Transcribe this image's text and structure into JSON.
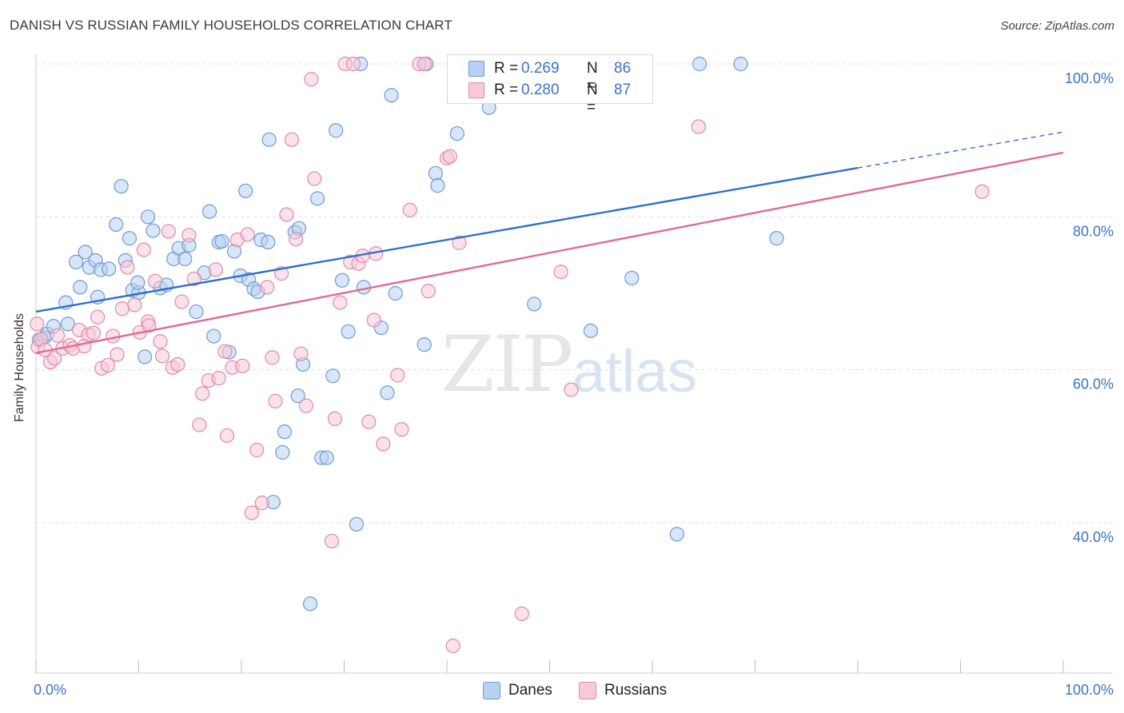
{
  "title": "DANISH VS RUSSIAN FAMILY HOUSEHOLDS CORRELATION CHART",
  "source": "Source: ZipAtlas.com",
  "watermark": {
    "zip": "ZIP",
    "atlas": "atlas"
  },
  "legend": {
    "rows": [
      {
        "r_label": "R =",
        "r_value": "0.269",
        "n_label": "N =",
        "n_value": "86",
        "color": "#a8c8f0",
        "border": "#6f9ad6"
      },
      {
        "r_label": "R =",
        "r_value": "0.280",
        "n_label": "N =",
        "n_value": "87",
        "color": "#f7bfd0",
        "border": "#e08aa6"
      }
    ]
  },
  "bottom_legend": {
    "danes": "Danes",
    "russians": "Russians"
  },
  "chart_data": {
    "type": "scatter",
    "title": "DANISH VS RUSSIAN FAMILY HOUSEHOLDS CORRELATION CHART",
    "xlabel": "",
    "ylabel": "Family Households",
    "xlim": [
      0,
      100
    ],
    "ylim": [
      20,
      102
    ],
    "x_tick_labels": [
      "0.0%",
      "100.0%"
    ],
    "y_ticks": [
      40,
      60,
      80,
      100
    ],
    "y_tick_labels": [
      "40.0%",
      "60.0%",
      "80.0%",
      "100.0%"
    ],
    "grid": true,
    "legend_position": "top-center",
    "series": [
      {
        "name": "Danes",
        "color": "#6f9ad6",
        "fill": "#b7d1f2",
        "line_color": "#2f6fce",
        "trend": {
          "x0": 0,
          "y0": 67.6,
          "x1": 80,
          "y1": 86.4,
          "dash_to_x": 100,
          "dash_to_y": 91.1
        },
        "points": [
          [
            0.3,
            63.9
          ],
          [
            0.8,
            64.2
          ],
          [
            1.1,
            64.7
          ],
          [
            1.7,
            65.7
          ],
          [
            2.9,
            68.8
          ],
          [
            3.9,
            74.1
          ],
          [
            4.3,
            70.8
          ],
          [
            4.8,
            75.4
          ],
          [
            5.2,
            73.4
          ],
          [
            5.8,
            74.3
          ],
          [
            6.3,
            73.1
          ],
          [
            7.1,
            73.2
          ],
          [
            7.8,
            79.0
          ],
          [
            8.3,
            84.0
          ],
          [
            8.7,
            74.3
          ],
          [
            9.1,
            77.2
          ],
          [
            9.4,
            70.4
          ],
          [
            10.0,
            70.1
          ],
          [
            10.6,
            61.7
          ],
          [
            10.9,
            80.0
          ],
          [
            11.4,
            78.2
          ],
          [
            12.1,
            70.7
          ],
          [
            12.7,
            71.1
          ],
          [
            13.4,
            74.5
          ],
          [
            13.9,
            75.9
          ],
          [
            14.5,
            74.5
          ],
          [
            14.9,
            76.3
          ],
          [
            15.6,
            67.6
          ],
          [
            16.4,
            72.7
          ],
          [
            16.9,
            80.7
          ],
          [
            17.3,
            64.4
          ],
          [
            17.8,
            76.7
          ],
          [
            18.1,
            76.8
          ],
          [
            18.8,
            62.3
          ],
          [
            19.3,
            75.5
          ],
          [
            19.9,
            72.3
          ],
          [
            20.4,
            83.4
          ],
          [
            20.7,
            71.8
          ],
          [
            21.2,
            70.6
          ],
          [
            21.6,
            70.2
          ],
          [
            21.9,
            77.0
          ],
          [
            22.6,
            76.7
          ],
          [
            22.7,
            90.1
          ],
          [
            23.1,
            42.7
          ],
          [
            24.2,
            51.9
          ],
          [
            24.0,
            49.2
          ],
          [
            25.2,
            78.0
          ],
          [
            25.5,
            56.6
          ],
          [
            25.6,
            78.5
          ],
          [
            26.0,
            60.7
          ],
          [
            26.7,
            29.4
          ],
          [
            27.4,
            82.4
          ],
          [
            27.8,
            48.5
          ],
          [
            28.3,
            48.5
          ],
          [
            28.9,
            59.2
          ],
          [
            29.2,
            91.3
          ],
          [
            29.8,
            71.7
          ],
          [
            30.4,
            65.0
          ],
          [
            31.2,
            39.8
          ],
          [
            31.6,
            100.0
          ],
          [
            31.9,
            70.8
          ],
          [
            33.6,
            65.5
          ],
          [
            34.2,
            57.0
          ],
          [
            34.6,
            95.9
          ],
          [
            35.0,
            70.0
          ],
          [
            37.8,
            63.3
          ],
          [
            38.0,
            100.0
          ],
          [
            38.9,
            85.7
          ],
          [
            39.1,
            84.1
          ],
          [
            41.0,
            90.9
          ],
          [
            42.1,
            100.0
          ],
          [
            44.1,
            94.3
          ],
          [
            44.8,
            100.0
          ],
          [
            47.3,
            100.0
          ],
          [
            48.5,
            68.6
          ],
          [
            50.3,
            100.0
          ],
          [
            54.0,
            65.1
          ],
          [
            56.4,
            100.0
          ],
          [
            58.0,
            72.0
          ],
          [
            62.4,
            38.5
          ],
          [
            64.6,
            100.0
          ],
          [
            68.6,
            100.0
          ],
          [
            72.1,
            77.2
          ],
          [
            3.1,
            66.0
          ],
          [
            6.0,
            69.5
          ],
          [
            9.9,
            71.4
          ]
        ]
      },
      {
        "name": "Russians",
        "color": "#e08aa6",
        "fill": "#f8c9d8",
        "line_color": "#e06a95",
        "trend": {
          "x0": 0,
          "y0": 62.2,
          "x1": 100,
          "y1": 88.4
        },
        "points": [
          [
            0.2,
            63.0
          ],
          [
            0.5,
            64.0
          ],
          [
            0.9,
            62.6
          ],
          [
            1.4,
            61.0
          ],
          [
            1.8,
            61.5
          ],
          [
            2.6,
            62.8
          ],
          [
            3.3,
            63.2
          ],
          [
            3.6,
            62.8
          ],
          [
            4.2,
            65.2
          ],
          [
            4.7,
            63.1
          ],
          [
            5.1,
            64.6
          ],
          [
            5.6,
            64.8
          ],
          [
            6.0,
            66.9
          ],
          [
            6.4,
            60.2
          ],
          [
            7.0,
            60.6
          ],
          [
            7.5,
            64.4
          ],
          [
            7.9,
            62.0
          ],
          [
            8.4,
            68.0
          ],
          [
            8.9,
            73.4
          ],
          [
            9.6,
            68.5
          ],
          [
            10.1,
            64.9
          ],
          [
            10.5,
            75.7
          ],
          [
            10.9,
            66.3
          ],
          [
            11.6,
            71.6
          ],
          [
            12.1,
            63.7
          ],
          [
            12.3,
            61.8
          ],
          [
            12.9,
            78.1
          ],
          [
            13.3,
            60.3
          ],
          [
            13.8,
            60.7
          ],
          [
            14.2,
            68.9
          ],
          [
            14.9,
            77.6
          ],
          [
            15.4,
            71.9
          ],
          [
            15.9,
            52.8
          ],
          [
            16.2,
            56.9
          ],
          [
            16.8,
            58.6
          ],
          [
            17.5,
            73.1
          ],
          [
            17.8,
            58.9
          ],
          [
            18.4,
            62.4
          ],
          [
            18.6,
            51.4
          ],
          [
            19.1,
            60.3
          ],
          [
            19.6,
            77.0
          ],
          [
            20.1,
            60.5
          ],
          [
            20.6,
            77.7
          ],
          [
            21.0,
            41.3
          ],
          [
            21.5,
            49.5
          ],
          [
            22.0,
            42.6
          ],
          [
            22.5,
            70.8
          ],
          [
            23.0,
            61.6
          ],
          [
            23.3,
            55.9
          ],
          [
            23.9,
            72.6
          ],
          [
            24.4,
            80.3
          ],
          [
            24.9,
            90.1
          ],
          [
            25.3,
            77.1
          ],
          [
            25.8,
            62.1
          ],
          [
            26.3,
            55.3
          ],
          [
            26.8,
            98.0
          ],
          [
            27.1,
            85.0
          ],
          [
            28.8,
            37.6
          ],
          [
            29.1,
            53.6
          ],
          [
            29.6,
            68.8
          ],
          [
            30.1,
            100.0
          ],
          [
            30.6,
            74.1
          ],
          [
            30.9,
            100.0
          ],
          [
            31.4,
            73.9
          ],
          [
            31.8,
            74.9
          ],
          [
            32.4,
            53.2
          ],
          [
            32.9,
            66.5
          ],
          [
            33.1,
            75.2
          ],
          [
            33.8,
            50.3
          ],
          [
            35.2,
            59.3
          ],
          [
            35.6,
            52.2
          ],
          [
            36.4,
            80.9
          ],
          [
            37.3,
            100.0
          ],
          [
            37.8,
            100.0
          ],
          [
            38.2,
            70.3
          ],
          [
            40.0,
            87.7
          ],
          [
            40.3,
            87.9
          ],
          [
            40.6,
            23.9
          ],
          [
            41.2,
            76.6
          ],
          [
            47.3,
            28.1
          ],
          [
            51.1,
            72.8
          ],
          [
            52.1,
            57.4
          ],
          [
            64.5,
            91.8
          ],
          [
            92.1,
            83.3
          ],
          [
            0.1,
            66.0
          ],
          [
            2.1,
            64.5
          ],
          [
            11.0,
            65.8
          ]
        ]
      }
    ]
  }
}
